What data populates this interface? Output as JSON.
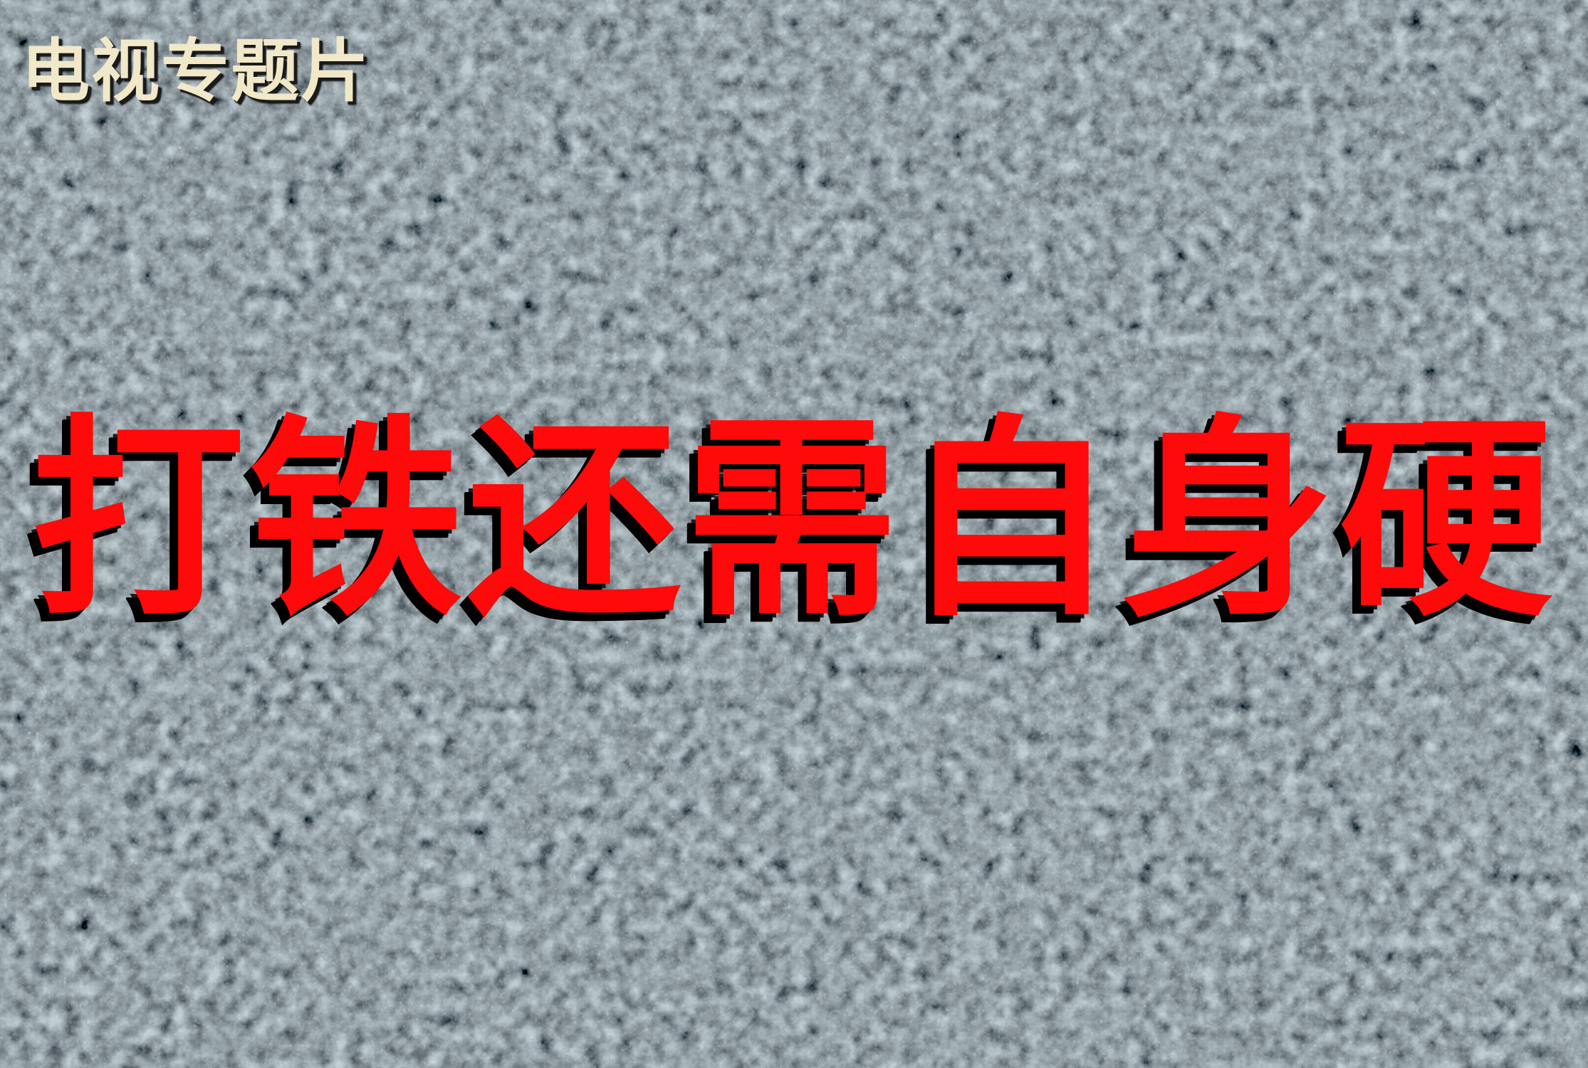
{
  "slide": {
    "caption": "电视专题片",
    "headline": "打铁还需自身硬"
  },
  "colors": {
    "background": "#8e9699",
    "caption_text": "#f1e7c9",
    "headline_text": "#ff0a0a",
    "shadow": "#000000"
  },
  "background": {
    "style": "grey granite stone texture"
  }
}
